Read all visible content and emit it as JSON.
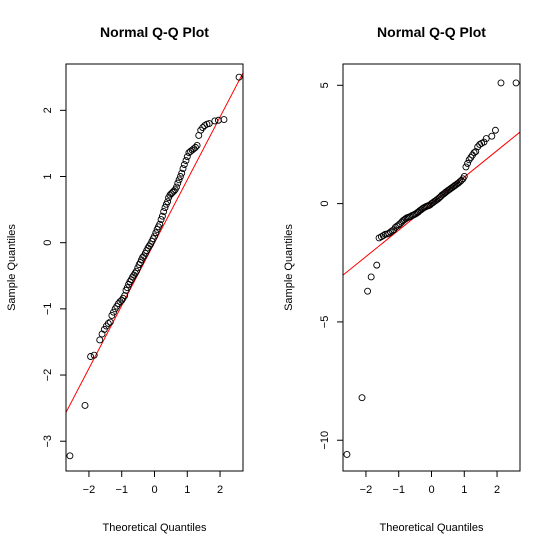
{
  "chart_data": [
    {
      "type": "scatter",
      "title": "Normal Q-Q Plot",
      "xlabel": "Theoretical Quantiles",
      "ylabel": "Sample Quantiles",
      "xlim": [
        -2.7,
        2.7
      ],
      "ylim": [
        -3.45,
        2.7
      ],
      "x_ticks": [
        -2,
        -1,
        0,
        1,
        2
      ],
      "x_tick_labels": [
        "−2",
        "−1",
        "0",
        "1",
        "2"
      ],
      "y_ticks": [
        -3,
        -2,
        -1,
        0,
        1,
        2
      ],
      "y_tick_labels": [
        "−3",
        "−2",
        "−1",
        "0",
        "1",
        "2"
      ],
      "reference_line": {
        "color": "#ff0000",
        "intercept": 0.0,
        "slope": 0.95
      },
      "point_color": "#000000",
      "points": [
        [
          -2.58,
          -3.22
        ],
        [
          -2.12,
          -2.46
        ],
        [
          -1.95,
          -1.72
        ],
        [
          -1.84,
          -1.7
        ],
        [
          -1.67,
          -1.47
        ],
        [
          -1.6,
          -1.38
        ],
        [
          -1.53,
          -1.31
        ],
        [
          -1.47,
          -1.26
        ],
        [
          -1.41,
          -1.22
        ],
        [
          -1.35,
          -1.2
        ],
        [
          -1.3,
          -1.1
        ],
        [
          -1.25,
          -1.05
        ],
        [
          -1.2,
          -1.0
        ],
        [
          -1.15,
          -0.96
        ],
        [
          -1.1,
          -0.92
        ],
        [
          -1.05,
          -0.89
        ],
        [
          -1.0,
          -0.87
        ],
        [
          -0.96,
          -0.84
        ],
        [
          -0.91,
          -0.8
        ],
        [
          -0.87,
          -0.72
        ],
        [
          -0.83,
          -0.68
        ],
        [
          -0.79,
          -0.63
        ],
        [
          -0.75,
          -0.59
        ],
        [
          -0.71,
          -0.56
        ],
        [
          -0.67,
          -0.52
        ],
        [
          -0.63,
          -0.49
        ],
        [
          -0.59,
          -0.46
        ],
        [
          -0.55,
          -0.43
        ],
        [
          -0.51,
          -0.38
        ],
        [
          -0.47,
          -0.33
        ],
        [
          -0.43,
          -0.3
        ],
        [
          -0.4,
          -0.26
        ],
        [
          -0.36,
          -0.22
        ],
        [
          -0.32,
          -0.2
        ],
        [
          -0.28,
          -0.16
        ],
        [
          -0.24,
          -0.12
        ],
        [
          -0.2,
          -0.08
        ],
        [
          -0.16,
          -0.05
        ],
        [
          -0.12,
          -0.02
        ],
        [
          -0.08,
          0.02
        ],
        [
          -0.04,
          0.06
        ],
        [
          0.0,
          0.1
        ],
        [
          0.04,
          0.15
        ],
        [
          0.08,
          0.2
        ],
        [
          0.12,
          0.24
        ],
        [
          0.16,
          0.28
        ],
        [
          0.2,
          0.35
        ],
        [
          0.24,
          0.4
        ],
        [
          0.28,
          0.47
        ],
        [
          0.32,
          0.53
        ],
        [
          0.36,
          0.58
        ],
        [
          0.4,
          0.62
        ],
        [
          0.43,
          0.68
        ],
        [
          0.47,
          0.72
        ],
        [
          0.51,
          0.74
        ],
        [
          0.55,
          0.76
        ],
        [
          0.59,
          0.78
        ],
        [
          0.63,
          0.8
        ],
        [
          0.67,
          0.84
        ],
        [
          0.71,
          0.9
        ],
        [
          0.75,
          0.95
        ],
        [
          0.79,
          1.0
        ],
        [
          0.83,
          1.05
        ],
        [
          0.87,
          1.12
        ],
        [
          0.91,
          1.18
        ],
        [
          0.96,
          1.24
        ],
        [
          1.0,
          1.3
        ],
        [
          1.05,
          1.36
        ],
        [
          1.1,
          1.38
        ],
        [
          1.15,
          1.4
        ],
        [
          1.2,
          1.42
        ],
        [
          1.25,
          1.44
        ],
        [
          1.3,
          1.47
        ],
        [
          1.35,
          1.62
        ],
        [
          1.41,
          1.7
        ],
        [
          1.47,
          1.74
        ],
        [
          1.53,
          1.77
        ],
        [
          1.6,
          1.79
        ],
        [
          1.67,
          1.8
        ],
        [
          1.84,
          1.84
        ],
        [
          1.95,
          1.85
        ],
        [
          2.12,
          1.86
        ],
        [
          2.58,
          2.5
        ]
      ]
    },
    {
      "type": "scatter",
      "title": "Normal Q-Q Plot",
      "xlabel": "Theoretical Quantiles",
      "ylabel": "Sample Quantiles",
      "xlim": [
        -2.7,
        2.7
      ],
      "ylim": [
        -11.3,
        5.9
      ],
      "x_ticks": [
        -2,
        -1,
        0,
        1,
        2
      ],
      "x_tick_labels": [
        "−2",
        "−1",
        "0",
        "1",
        "2"
      ],
      "y_ticks": [
        -10,
        -5,
        0,
        5
      ],
      "y_tick_labels": [
        "−10",
        "−5",
        "0",
        "5"
      ],
      "reference_line": {
        "color": "#ff0000",
        "intercept": 0.0,
        "slope": 1.12
      },
      "point_color": "#000000",
      "points": [
        [
          -2.58,
          -10.6
        ],
        [
          -2.12,
          -8.2
        ],
        [
          -1.95,
          -3.7
        ],
        [
          -1.84,
          -3.1
        ],
        [
          -1.67,
          -2.6
        ],
        [
          -1.6,
          -1.45
        ],
        [
          -1.53,
          -1.4
        ],
        [
          -1.47,
          -1.35
        ],
        [
          -1.41,
          -1.3
        ],
        [
          -1.35,
          -1.28
        ],
        [
          -1.3,
          -1.25
        ],
        [
          -1.25,
          -1.2
        ],
        [
          -1.2,
          -1.15
        ],
        [
          -1.15,
          -1.1
        ],
        [
          -1.1,
          -1.0
        ],
        [
          -1.05,
          -0.95
        ],
        [
          -1.0,
          -0.9
        ],
        [
          -0.96,
          -0.85
        ],
        [
          -0.91,
          -0.78
        ],
        [
          -0.87,
          -0.72
        ],
        [
          -0.83,
          -0.68
        ],
        [
          -0.79,
          -0.64
        ],
        [
          -0.75,
          -0.6
        ],
        [
          -0.71,
          -0.58
        ],
        [
          -0.67,
          -0.56
        ],
        [
          -0.63,
          -0.54
        ],
        [
          -0.59,
          -0.5
        ],
        [
          -0.55,
          -0.48
        ],
        [
          -0.51,
          -0.45
        ],
        [
          -0.47,
          -0.42
        ],
        [
          -0.43,
          -0.38
        ],
        [
          -0.4,
          -0.35
        ],
        [
          -0.36,
          -0.3
        ],
        [
          -0.32,
          -0.26
        ],
        [
          -0.28,
          -0.22
        ],
        [
          -0.24,
          -0.18
        ],
        [
          -0.2,
          -0.15
        ],
        [
          -0.16,
          -0.12
        ],
        [
          -0.12,
          -0.1
        ],
        [
          -0.08,
          -0.08
        ],
        [
          -0.04,
          -0.05
        ],
        [
          0.0,
          0.0
        ],
        [
          0.04,
          0.04
        ],
        [
          0.08,
          0.08
        ],
        [
          0.12,
          0.12
        ],
        [
          0.16,
          0.16
        ],
        [
          0.2,
          0.2
        ],
        [
          0.24,
          0.25
        ],
        [
          0.28,
          0.3
        ],
        [
          0.32,
          0.36
        ],
        [
          0.36,
          0.4
        ],
        [
          0.4,
          0.44
        ],
        [
          0.43,
          0.48
        ],
        [
          0.47,
          0.52
        ],
        [
          0.51,
          0.56
        ],
        [
          0.55,
          0.6
        ],
        [
          0.59,
          0.64
        ],
        [
          0.63,
          0.68
        ],
        [
          0.67,
          0.72
        ],
        [
          0.71,
          0.76
        ],
        [
          0.75,
          0.8
        ],
        [
          0.79,
          0.84
        ],
        [
          0.83,
          0.88
        ],
        [
          0.87,
          0.93
        ],
        [
          0.91,
          0.98
        ],
        [
          0.96,
          1.05
        ],
        [
          1.0,
          1.15
        ],
        [
          1.05,
          1.55
        ],
        [
          1.1,
          1.7
        ],
        [
          1.15,
          1.85
        ],
        [
          1.2,
          1.95
        ],
        [
          1.25,
          2.05
        ],
        [
          1.3,
          2.15
        ],
        [
          1.35,
          2.2
        ],
        [
          1.41,
          2.4
        ],
        [
          1.47,
          2.5
        ],
        [
          1.53,
          2.55
        ],
        [
          1.6,
          2.6
        ],
        [
          1.67,
          2.75
        ],
        [
          1.84,
          2.85
        ],
        [
          1.95,
          3.1
        ],
        [
          2.12,
          5.1
        ],
        [
          2.58,
          5.1
        ]
      ]
    }
  ]
}
